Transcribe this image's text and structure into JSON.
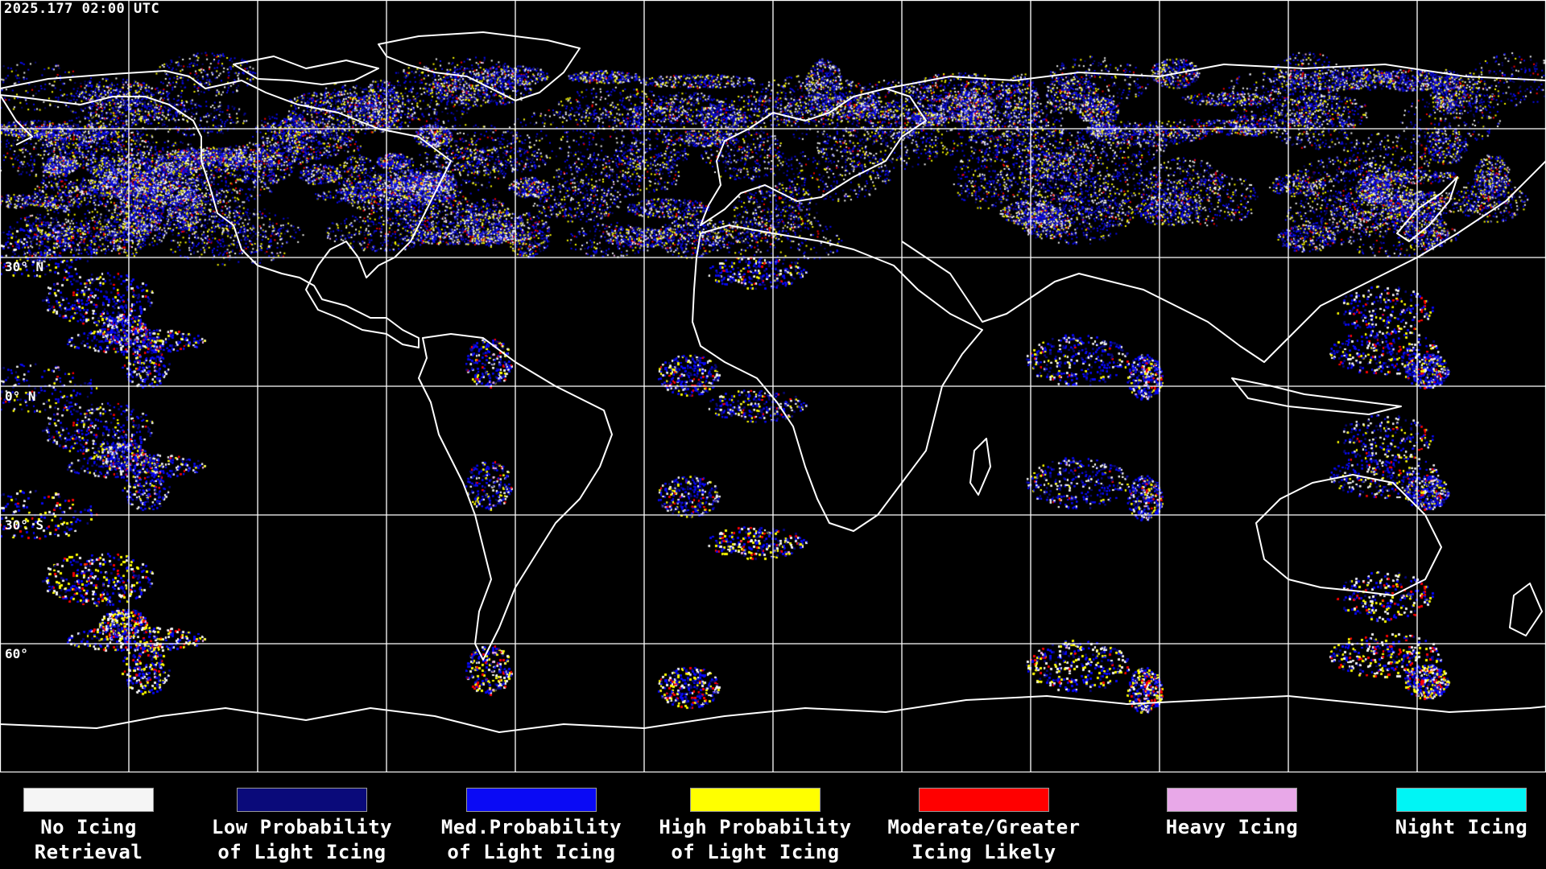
{
  "header": {
    "timestamp": "2025.177 02:00 UTC"
  },
  "map": {
    "type": "global icing product",
    "latitude_labels": [
      "30° N",
      "0° N",
      "30° S",
      "60°"
    ],
    "background_color": "#000000",
    "grid_color": "#ffffff",
    "coastline_color": "#ffffff"
  },
  "legend": {
    "items": [
      {
        "line1": "No Icing",
        "line2": "Retrieval",
        "color": "#f5f5f5"
      },
      {
        "line1": "Low Probability",
        "line2": "of Light Icing",
        "color": "#0a0a7a"
      },
      {
        "line1": "Med.Probability",
        "line2": "of Light Icing",
        "color": "#0a0af5"
      },
      {
        "line1": "High Probability",
        "line2": "of Light Icing",
        "color": "#ffff00"
      },
      {
        "line1": "Moderate/Greater",
        "line2": "Icing Likely",
        "color": "#ff0000"
      },
      {
        "line1": "Heavy Icing",
        "line2": "",
        "color": "#e8a8e8"
      },
      {
        "line1": "Night Icing",
        "line2": "",
        "color": "#00f5f5"
      }
    ]
  }
}
